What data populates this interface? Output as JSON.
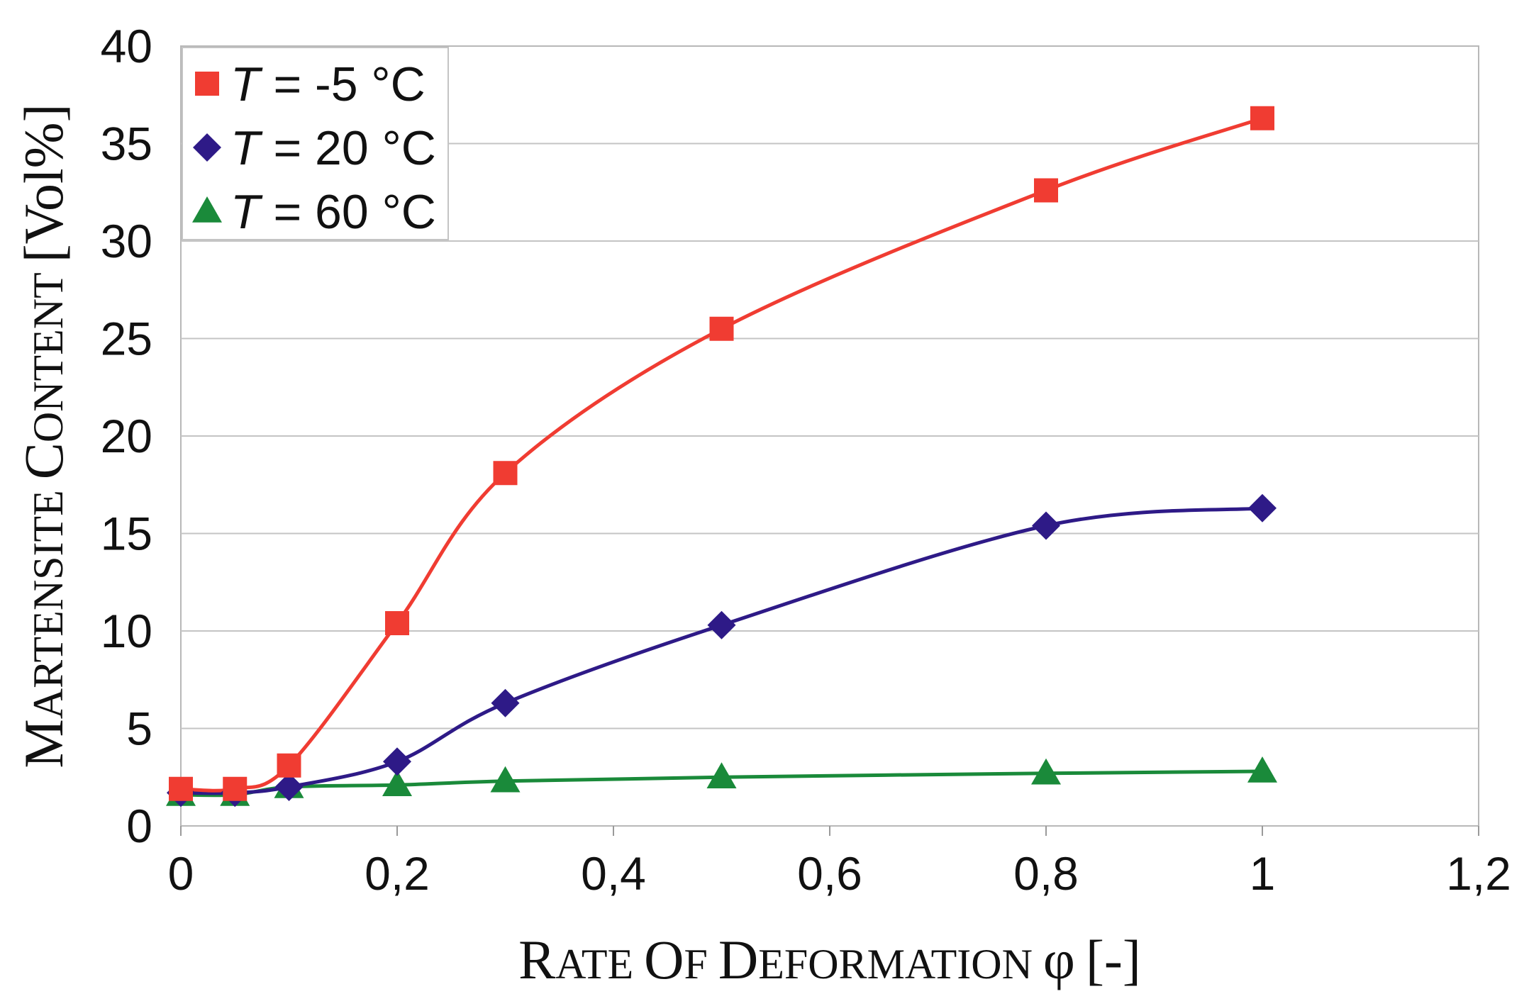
{
  "chart_data": {
    "type": "line",
    "title": "",
    "xlabel": "Rate of Deformation φ [-]",
    "ylabel": "Martensite Content [Vol%]",
    "xlim": [
      0,
      1.2
    ],
    "ylim": [
      0,
      40
    ],
    "x_ticks": [
      "0",
      "0,2",
      "0,4",
      "0,6",
      "0,8",
      "1",
      "1,2"
    ],
    "y_ticks": [
      "0",
      "5",
      "10",
      "15",
      "20",
      "25",
      "30",
      "35",
      "40"
    ],
    "grid": "horizontal",
    "legend_position": "top-left",
    "series": [
      {
        "name": "T = -5 °C",
        "legend_var": "T",
        "legend_rest": " =  -5 °C",
        "color": "#f03c32",
        "marker": "square",
        "x": [
          0,
          0.05,
          0.1,
          0.2,
          0.3,
          0.5,
          0.8,
          1.0
        ],
        "values": [
          1.9,
          1.9,
          3.1,
          10.4,
          18.1,
          25.5,
          32.6,
          36.3
        ]
      },
      {
        "name": "T = 20 °C",
        "legend_var": "T",
        "legend_rest": " = 20 °C",
        "color": "#2e1a87",
        "marker": "diamond",
        "x": [
          0,
          0.05,
          0.1,
          0.2,
          0.3,
          0.5,
          0.8,
          1.0
        ],
        "values": [
          1.7,
          1.7,
          2.0,
          3.3,
          6.3,
          10.3,
          15.4,
          16.3
        ]
      },
      {
        "name": "T = 60 °C",
        "legend_var": "T",
        "legend_rest": " = 60 °C",
        "color": "#1a8a3a",
        "marker": "triangle",
        "x": [
          0,
          0.05,
          0.1,
          0.2,
          0.3,
          0.5,
          0.8,
          1.0
        ],
        "values": [
          1.6,
          1.6,
          2.0,
          2.1,
          2.3,
          2.5,
          2.7,
          2.8
        ]
      }
    ]
  }
}
